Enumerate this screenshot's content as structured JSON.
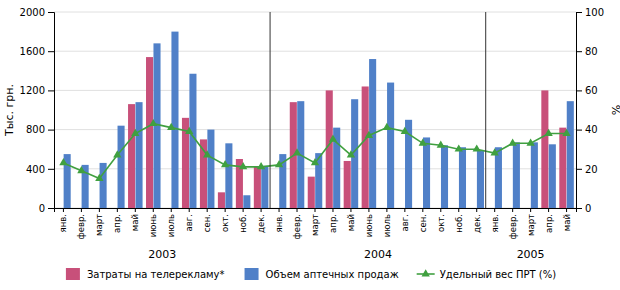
{
  "chart_data": {
    "type": "bar",
    "categories": [
      "янв.",
      "февр.",
      "март",
      "апр.",
      "май",
      "июнь",
      "июль",
      "авг.",
      "сен.",
      "окт.",
      "ноб.",
      "дек.",
      "янв.",
      "февр.",
      "март",
      "апр.",
      "май",
      "июнь",
      "июль",
      "авг.",
      "сен.",
      "окт.",
      "ноб.",
      "дек.",
      "янв.",
      "февр.",
      "март",
      "апр.",
      "май"
    ],
    "category_groups": [
      {
        "label": "2003",
        "count": 12
      },
      {
        "label": "2004",
        "count": 12
      },
      {
        "label": "2005",
        "count": 5
      }
    ],
    "series": [
      {
        "name": "Затраты на телерекламу*",
        "type": "bar",
        "color": "#c8507a",
        "values": [
          0,
          0,
          0,
          0,
          1060,
          1540,
          0,
          920,
          700,
          160,
          500,
          420,
          0,
          1080,
          320,
          1200,
          480,
          1240,
          0,
          0,
          0,
          0,
          0,
          0,
          0,
          0,
          0,
          1200,
          820
        ]
      },
      {
        "name": "Объем аптечных продаж",
        "type": "bar",
        "color": "#5080c8",
        "values": [
          550,
          440,
          460,
          840,
          1080,
          1680,
          1800,
          1370,
          800,
          660,
          130,
          430,
          550,
          1090,
          560,
          820,
          1110,
          1520,
          1280,
          900,
          720,
          640,
          620,
          590,
          620,
          670,
          670,
          650,
          1090
        ]
      },
      {
        "name": "Удельный вес ПРТ (%)",
        "type": "line",
        "axis": "y2",
        "color": "#40a040",
        "marker": "triangle",
        "values": [
          23,
          19,
          15,
          27,
          38,
          43,
          41,
          39,
          27,
          22,
          21,
          21,
          22,
          28,
          23,
          35,
          27,
          37,
          41,
          39,
          33,
          32,
          30,
          30,
          28,
          33,
          33,
          38,
          38
        ]
      }
    ],
    "ylabel": "Тыс. грн.",
    "y2label": "%",
    "ylim": [
      0,
      2000
    ],
    "yticks": [
      0,
      400,
      800,
      1200,
      1600,
      2000
    ],
    "y2lim": [
      0,
      100
    ],
    "y2ticks": [
      0,
      20,
      40,
      60,
      80,
      100
    ],
    "grid": true,
    "legend": "bottom"
  }
}
